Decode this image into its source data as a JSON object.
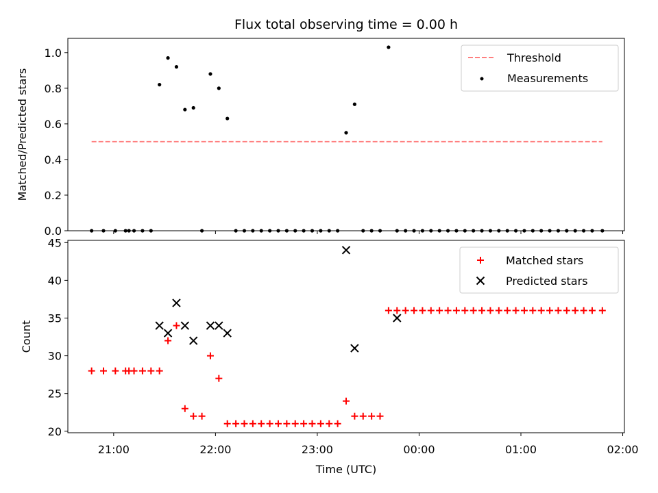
{
  "chart_data": [
    {
      "type": "scatter",
      "title": "Flux total observing time = 0.00 h",
      "xlabel": "",
      "ylabel": "Matched/Predicted stars",
      "xlim": [
        "20:33",
        "02:01"
      ],
      "ylim": [
        0,
        1.08
      ],
      "yticks": [
        "0.0",
        "0.2",
        "0.4",
        "0.6",
        "0.8",
        "1.0"
      ],
      "ytick_values": [
        0,
        0.2,
        0.4,
        0.6,
        0.8,
        1.0
      ],
      "legend_position": "upper right",
      "series": [
        {
          "name": "Threshold",
          "kind": "dashed-line",
          "color": "#ff7f7f",
          "x": [
            "20:47",
            "01:48"
          ],
          "y": [
            0.5,
            0.5
          ]
        },
        {
          "name": "Measurements",
          "kind": "dot",
          "color": "#000000",
          "x": [
            "20:47",
            "20:54",
            "21:01",
            "21:07",
            "21:09",
            "21:12",
            "21:17",
            "21:22",
            "21:27",
            "21:32",
            "21:37",
            "21:42",
            "21:47",
            "21:52",
            "21:57",
            "22:02",
            "22:07",
            "22:12",
            "22:17",
            "22:22",
            "22:27",
            "22:32",
            "22:37",
            "22:42",
            "22:47",
            "22:52",
            "22:57",
            "23:02",
            "23:07",
            "23:12",
            "23:17",
            "23:22",
            "23:27",
            "23:32",
            "23:37",
            "23:42",
            "23:47",
            "23:52",
            "23:57",
            "00:02",
            "00:07",
            "00:12",
            "00:17",
            "00:22",
            "00:27",
            "00:32",
            "00:37",
            "00:42",
            "00:47",
            "00:52",
            "00:57",
            "01:02",
            "01:07",
            "01:12",
            "01:17",
            "01:22",
            "01:27",
            "01:32",
            "01:37",
            "01:42",
            "01:48"
          ],
          "y": [
            0,
            0,
            0,
            0,
            0,
            0,
            0,
            0,
            0.82,
            0.97,
            0.92,
            0.68,
            0.69,
            0,
            0.88,
            0.8,
            0.63,
            0,
            0,
            0,
            0,
            0,
            0,
            0,
            0,
            0,
            0,
            0,
            0,
            0,
            0.55,
            0.71,
            0,
            0,
            0,
            1.03,
            0,
            0,
            0,
            0,
            0,
            0,
            0,
            0,
            0,
            0,
            0,
            0,
            0,
            0,
            0,
            0,
            0,
            0,
            0,
            0,
            0,
            0,
            0,
            0,
            0
          ]
        }
      ]
    },
    {
      "type": "scatter",
      "title": "",
      "xlabel": "Time (UTC)",
      "ylabel": "Count",
      "xlim": [
        "20:33",
        "02:01"
      ],
      "ylim": [
        19.8,
        45.3
      ],
      "yticks": [
        "20",
        "25",
        "30",
        "35",
        "40",
        "45"
      ],
      "ytick_values": [
        20,
        25,
        30,
        35,
        40,
        45
      ],
      "xticks": [
        "21:00",
        "22:00",
        "23:00",
        "00:00",
        "01:00",
        "02:00"
      ],
      "legend_position": "upper right",
      "series": [
        {
          "name": "Matched stars",
          "kind": "plus",
          "color": "#ff0000",
          "x": [
            "20:47",
            "20:54",
            "21:01",
            "21:07",
            "21:09",
            "21:12",
            "21:17",
            "21:22",
            "21:27",
            "21:32",
            "21:37",
            "21:42",
            "21:47",
            "21:52",
            "21:57",
            "22:02",
            "22:07",
            "22:12",
            "22:17",
            "22:22",
            "22:27",
            "22:32",
            "22:37",
            "22:42",
            "22:47",
            "22:52",
            "22:57",
            "23:02",
            "23:07",
            "23:12",
            "23:17",
            "23:22",
            "23:27",
            "23:32",
            "23:37",
            "23:42",
            "23:47",
            "23:52",
            "23:57",
            "00:02",
            "00:07",
            "00:12",
            "00:17",
            "00:22",
            "00:27",
            "00:32",
            "00:37",
            "00:42",
            "00:47",
            "00:52",
            "00:57",
            "01:02",
            "01:07",
            "01:12",
            "01:17",
            "01:22",
            "01:27",
            "01:32",
            "01:37",
            "01:42",
            "01:48"
          ],
          "y": [
            28,
            28,
            28,
            28,
            28,
            28,
            28,
            28,
            28,
            32,
            34,
            23,
            22,
            22,
            30,
            27,
            21,
            21,
            21,
            21,
            21,
            21,
            21,
            21,
            21,
            21,
            21,
            21,
            21,
            21,
            24,
            22,
            22,
            22,
            22,
            36,
            36,
            36,
            36,
            36,
            36,
            36,
            36,
            36,
            36,
            36,
            36,
            36,
            36,
            36,
            36,
            36,
            36,
            36,
            36,
            36,
            36,
            36,
            36,
            36,
            36
          ]
        },
        {
          "name": "Predicted stars",
          "kind": "x",
          "color": "#000000",
          "x": [
            "21:27",
            "21:32",
            "21:37",
            "21:42",
            "21:47",
            "21:57",
            "22:02",
            "22:07",
            "23:17",
            "23:22",
            "23:47"
          ],
          "y": [
            34,
            33,
            37,
            34,
            32,
            34,
            34,
            33,
            44,
            31,
            35
          ]
        }
      ]
    }
  ]
}
